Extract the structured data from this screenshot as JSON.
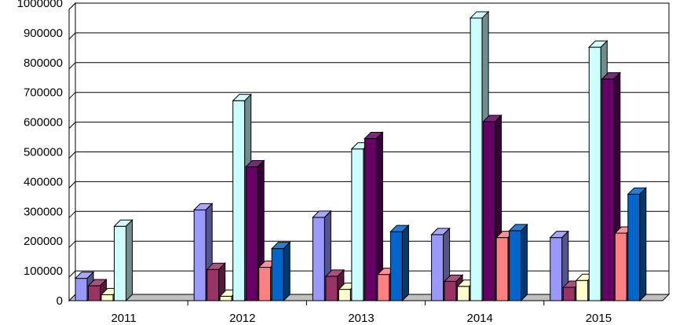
{
  "chart_data": {
    "type": "bar",
    "title": "",
    "xlabel": "",
    "ylabel": "",
    "categories": [
      "2011",
      "2012",
      "2013",
      "2014",
      "2015"
    ],
    "ylim": [
      0,
      1000000
    ],
    "yticks": [
      0,
      100000,
      200000,
      300000,
      400000,
      500000,
      600000,
      700000,
      800000,
      900000,
      1000000
    ],
    "ytick_labels": [
      "0",
      "100000",
      "200000",
      "300000",
      "400000",
      "500000",
      "600000",
      "700000",
      "800000",
      "900000",
      "1000000"
    ],
    "grid": true,
    "legend": "none",
    "series": [
      {
        "color": "#9999ff",
        "values": [
          75000,
          305000,
          280000,
          222000,
          212000
        ]
      },
      {
        "color": "#993366",
        "values": [
          50000,
          105000,
          82000,
          65000,
          45000
        ]
      },
      {
        "color": "#ffffcc",
        "values": [
          20000,
          15000,
          38000,
          48000,
          68000
        ]
      },
      {
        "color": "#ccffff",
        "values": [
          250000,
          672000,
          510000,
          950000,
          852000
        ]
      },
      {
        "color": "#660066",
        "values": [
          0,
          450000,
          545000,
          602000,
          745000
        ]
      },
      {
        "color": "#ff8080",
        "values": [
          0,
          112000,
          88000,
          212000,
          227000
        ]
      },
      {
        "color": "#0066cc",
        "values": [
          0,
          175000,
          232000,
          235000,
          358000
        ]
      }
    ]
  }
}
